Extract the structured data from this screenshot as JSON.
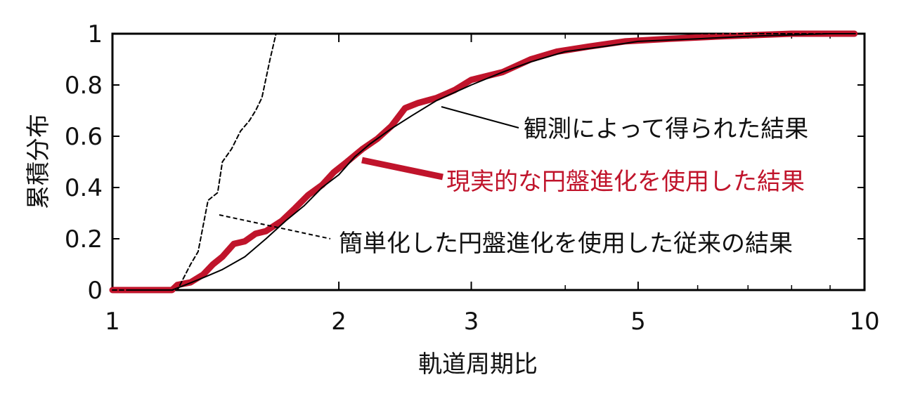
{
  "chart_data": {
    "type": "line",
    "xlabel": "軌道周期比",
    "ylabel": "累積分布",
    "x_scale": "log",
    "xlim": [
      1,
      10
    ],
    "ylim": [
      0,
      1
    ],
    "x_ticks": [
      {
        "value": 1,
        "label": "1"
      },
      {
        "value": 2,
        "label": "2"
      },
      {
        "value": 3,
        "label": "3"
      },
      {
        "value": 5,
        "label": "5"
      },
      {
        "value": 10,
        "label": "10"
      }
    ],
    "y_ticks": [
      {
        "value": 0,
        "label": "0"
      },
      {
        "value": 0.2,
        "label": "0.2"
      },
      {
        "value": 0.4,
        "label": "0.4"
      },
      {
        "value": 0.6,
        "label": "0.6"
      },
      {
        "value": 0.8,
        "label": "0.8"
      },
      {
        "value": 1,
        "label": "1"
      }
    ],
    "series": [
      {
        "name": "観測によって得られた結果",
        "color": "#000000",
        "style": "thin-solid",
        "x": [
          1.05,
          1.2,
          1.25,
          1.3,
          1.35,
          1.4,
          1.5,
          1.6,
          1.7,
          1.8,
          1.9,
          2.0,
          2.1,
          2.2,
          2.35,
          2.5,
          2.7,
          3.0,
          3.3,
          3.6,
          4.0,
          4.5,
          5.0,
          6.0,
          7.0,
          8.0,
          9.0,
          9.7
        ],
        "y": [
          0.0,
          0.0,
          0.02,
          0.04,
          0.06,
          0.08,
          0.13,
          0.2,
          0.27,
          0.33,
          0.4,
          0.45,
          0.52,
          0.57,
          0.63,
          0.68,
          0.74,
          0.8,
          0.85,
          0.89,
          0.93,
          0.95,
          0.97,
          0.98,
          0.99,
          0.995,
          1.0,
          1.0
        ]
      },
      {
        "name": "現実的な円盤進化を使用した結果",
        "color": "#c0142b",
        "style": "thick-solid",
        "x": [
          1.0,
          1.2,
          1.22,
          1.27,
          1.32,
          1.36,
          1.4,
          1.45,
          1.5,
          1.55,
          1.6,
          1.68,
          1.75,
          1.82,
          1.9,
          1.97,
          2.05,
          2.15,
          2.25,
          2.35,
          2.45,
          2.55,
          2.7,
          2.85,
          3.0,
          3.3,
          3.6,
          3.9,
          4.3,
          4.8,
          5.5,
          6.5,
          8.0,
          9.7
        ],
        "y": [
          0.0,
          0.0,
          0.02,
          0.03,
          0.06,
          0.1,
          0.13,
          0.18,
          0.19,
          0.22,
          0.23,
          0.27,
          0.32,
          0.37,
          0.41,
          0.46,
          0.5,
          0.55,
          0.59,
          0.64,
          0.71,
          0.73,
          0.75,
          0.78,
          0.82,
          0.85,
          0.9,
          0.93,
          0.95,
          0.97,
          0.98,
          0.99,
          1.0,
          1.0
        ]
      },
      {
        "name": "簡単化した円盤進化を使用した従来の結果",
        "color": "#000000",
        "style": "dashed",
        "x": [
          1.0,
          1.22,
          1.27,
          1.3,
          1.34,
          1.38,
          1.4,
          1.44,
          1.48,
          1.52,
          1.55,
          1.58,
          1.62,
          1.65,
          10.0
        ],
        "y": [
          0.0,
          0.0,
          0.1,
          0.15,
          0.35,
          0.38,
          0.5,
          0.55,
          0.62,
          0.66,
          0.7,
          0.75,
          0.9,
          1.0,
          1.0
        ]
      }
    ],
    "annotations": [
      "観測によって得られた結果",
      "現実的な円盤進化を使用した結果",
      "簡単化した円盤進化を使用した従来の結果"
    ]
  }
}
